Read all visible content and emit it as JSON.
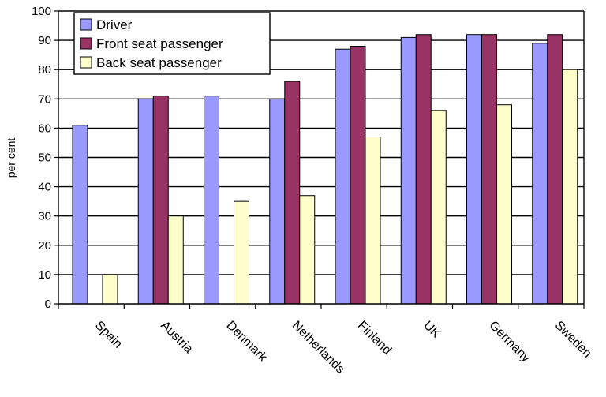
{
  "chart_data": {
    "type": "bar",
    "categories": [
      "Spain",
      "Austria",
      "Denmark",
      "Netherlands",
      "Finland",
      "UK",
      "Germany",
      "Sweden"
    ],
    "series": [
      {
        "name": "Driver",
        "color": "#9999ff",
        "values": [
          61,
          70,
          71,
          70,
          87,
          91,
          92,
          89
        ]
      },
      {
        "name": "Front seat passenger",
        "color": "#993366",
        "values": [
          null,
          71,
          null,
          76,
          88,
          92,
          92,
          92
        ]
      },
      {
        "name": "Back seat passenger",
        "color": "#ffffcc",
        "values": [
          10,
          30,
          35,
          37,
          57,
          66,
          68,
          80
        ]
      }
    ],
    "ylabel": "per cent",
    "ylim": [
      0,
      100
    ],
    "yticks": [
      0,
      10,
      20,
      30,
      40,
      50,
      60,
      70,
      80,
      90,
      100
    ],
    "grid": "horizontal",
    "legend": "top-left"
  }
}
